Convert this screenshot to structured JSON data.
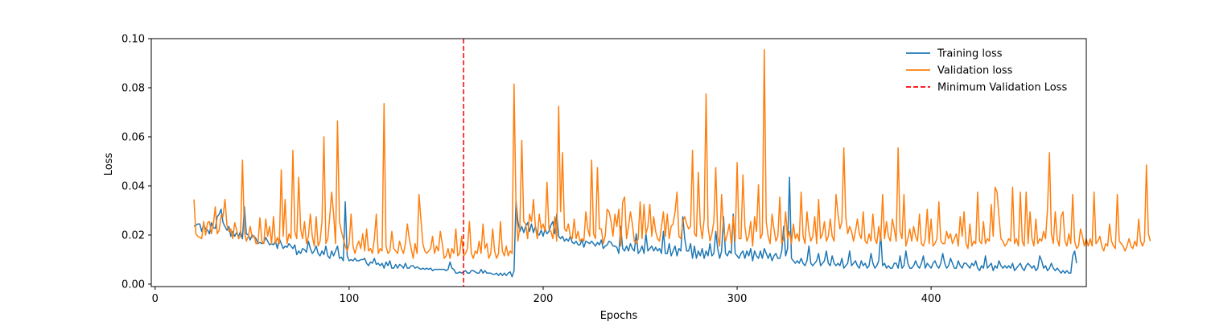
{
  "chart_data": {
    "type": "line",
    "xlabel": "Epochs",
    "ylabel": "Loss",
    "xlim": [
      -2,
      480
    ],
    "ylim": [
      -0.001,
      0.1
    ],
    "xticks": [
      0,
      100,
      200,
      300,
      400
    ],
    "yticks": [
      0.0,
      0.02,
      0.04,
      0.06,
      0.08,
      0.1
    ],
    "xtick_labels": [
      "0",
      "100",
      "200",
      "300",
      "400"
    ],
    "ytick_labels": [
      "0.00",
      "0.02",
      "0.04",
      "0.06",
      "0.08",
      "0.10"
    ],
    "grid": false,
    "legend_position": "top-right",
    "x_start": 20,
    "series": [
      {
        "name": "Training loss",
        "color": "#1f77b4",
        "style": "solid",
        "values": [
          0.0235,
          0.024,
          0.0245,
          0.0245,
          0.0215,
          0.0243,
          0.0225,
          0.022,
          0.0205,
          0.025,
          0.023,
          0.0227,
          0.0275,
          0.0285,
          0.0305,
          0.025,
          0.0235,
          0.022,
          0.0235,
          0.0195,
          0.0215,
          0.0195,
          0.021,
          0.0195,
          0.0215,
          0.0185,
          0.0315,
          0.0205,
          0.02,
          0.018,
          0.02,
          0.0195,
          0.0185,
          0.0165,
          0.017,
          0.0165,
          0.017,
          0.019,
          0.0175,
          0.016,
          0.0165,
          0.016,
          0.0175,
          0.0145,
          0.0185,
          0.0165,
          0.0145,
          0.0155,
          0.015,
          0.0165,
          0.0155,
          0.0145,
          0.016,
          0.012,
          0.0135,
          0.0125,
          0.0145,
          0.014,
          0.013,
          0.0175,
          0.0145,
          0.0125,
          0.0135,
          0.0155,
          0.0125,
          0.0115,
          0.0135,
          0.012,
          0.0155,
          0.0115,
          0.0105,
          0.0135,
          0.0115,
          0.0135,
          0.0155,
          0.0105,
          0.011,
          0.0095,
          0.0335,
          0.0115,
          0.0095,
          0.01,
          0.0095,
          0.0105,
          0.0095,
          0.0095,
          0.01,
          0.01,
          0.0105,
          0.0085,
          0.0075,
          0.009,
          0.0085,
          0.0105,
          0.008,
          0.0085,
          0.0075,
          0.0085,
          0.0065,
          0.009,
          0.0075,
          0.0095,
          0.0065,
          0.0065,
          0.008,
          0.0065,
          0.008,
          0.0075,
          0.0065,
          0.0085,
          0.0065,
          0.0065,
          0.0075,
          0.0075,
          0.0065,
          0.007,
          0.0065,
          0.006,
          0.0065,
          0.006,
          0.0065,
          0.006,
          0.0065,
          0.0055,
          0.006,
          0.006,
          0.006,
          0.006,
          0.006,
          0.006,
          0.0055,
          0.006,
          0.009,
          0.0065,
          0.006,
          0.0045,
          0.0045,
          0.005,
          0.0045,
          0.005,
          0.0055,
          0.0045,
          0.0045,
          0.0055,
          0.0055,
          0.005,
          0.0045,
          0.0045,
          0.006,
          0.0045,
          0.0055,
          0.0045,
          0.0045,
          0.0045,
          0.004,
          0.004,
          0.0045,
          0.0035,
          0.0045,
          0.0035,
          0.0045,
          0.0035,
          0.0045,
          0.005,
          0.003,
          0.0055,
          0.034,
          0.0255,
          0.0215,
          0.0235,
          0.021,
          0.0235,
          0.025,
          0.0215,
          0.0245,
          0.021,
          0.0235,
          0.0205,
          0.02,
          0.022,
          0.0195,
          0.0225,
          0.0205,
          0.0215,
          0.024,
          0.0255,
          0.0205,
          0.0285,
          0.0195,
          0.0185,
          0.0195,
          0.0175,
          0.0185,
          0.0175,
          0.0195,
          0.017,
          0.0165,
          0.0175,
          0.016,
          0.016,
          0.018,
          0.015,
          0.0175,
          0.017,
          0.0165,
          0.0175,
          0.0165,
          0.0155,
          0.017,
          0.016,
          0.018,
          0.0145,
          0.0155,
          0.016,
          0.0175,
          0.017,
          0.0155,
          0.0155,
          0.015,
          0.0125,
          0.0235,
          0.0145,
          0.0135,
          0.0155,
          0.0135,
          0.0165,
          0.0145,
          0.0135,
          0.0205,
          0.0125,
          0.0135,
          0.0155,
          0.0125,
          0.0205,
          0.0135,
          0.0145,
          0.0155,
          0.0135,
          0.015,
          0.0135,
          0.0145,
          0.0125,
          0.0215,
          0.0125,
          0.0125,
          0.0165,
          0.0115,
          0.0135,
          0.0155,
          0.0115,
          0.0145,
          0.0135,
          0.0275,
          0.0185,
          0.0135,
          0.0135,
          0.0165,
          0.0105,
          0.0155,
          0.0105,
          0.0135,
          0.0115,
          0.0145,
          0.0105,
          0.0135,
          0.0115,
          0.0165,
          0.0115,
          0.0125,
          0.0215,
          0.0145,
          0.0105,
          0.0135,
          0.0275,
          0.0125,
          0.0115,
          0.0135,
          0.0125,
          0.0285,
          0.0125,
          0.0115,
          0.0105,
          0.0125,
          0.0135,
          0.0105,
          0.0135,
          0.0115,
          0.0145,
          0.0095,
          0.0135,
          0.0115,
          0.0105,
          0.0135,
          0.0105,
          0.0145,
          0.0125,
          0.0105,
          0.0125,
          0.0095,
          0.0115,
          0.0125,
          0.0105,
          0.0105,
          0.0135,
          0.0235,
          0.0115,
          0.0145,
          0.0435,
          0.0105,
          0.0095,
          0.0085,
          0.0095,
          0.0085,
          0.0105,
          0.0085,
          0.0075,
          0.0095,
          0.0155,
          0.0085,
          0.0075,
          0.0085,
          0.0095,
          0.0125,
          0.0075,
          0.0085,
          0.0095,
          0.0135,
          0.0085,
          0.0075,
          0.0115,
          0.0085,
          0.0075,
          0.0085,
          0.0075,
          0.0105,
          0.0065,
          0.0075,
          0.0085,
          0.0135,
          0.0075,
          0.0085,
          0.0095,
          0.0075,
          0.0065,
          0.0095,
          0.0075,
          0.0085,
          0.0065,
          0.0075,
          0.0125,
          0.0085,
          0.0065,
          0.0075,
          0.0095,
          0.0205,
          0.0075,
          0.0085,
          0.0065,
          0.0075,
          0.0065,
          0.0065,
          0.0085,
          0.0085,
          0.0065,
          0.0115,
          0.0065,
          0.0075,
          0.0135,
          0.0085,
          0.0065,
          0.0065,
          0.0075,
          0.0095,
          0.0075,
          0.0065,
          0.0085,
          0.0115,
          0.0065,
          0.0085,
          0.0075,
          0.0065,
          0.0085,
          0.0095,
          0.0075,
          0.0065,
          0.0085,
          0.0125,
          0.0085,
          0.0065,
          0.0075,
          0.0105,
          0.0085,
          0.0065,
          0.0065,
          0.0095,
          0.0075,
          0.0065,
          0.0085,
          0.0085,
          0.0075,
          0.0065,
          0.0085,
          0.0075,
          0.0095,
          0.0065,
          0.0055,
          0.0075,
          0.0065,
          0.0115,
          0.0065,
          0.0075,
          0.0085,
          0.0055,
          0.0075,
          0.0065,
          0.0095,
          0.0075,
          0.0065,
          0.0075,
          0.0065,
          0.0075,
          0.0065,
          0.0085,
          0.0055,
          0.0065,
          0.0075,
          0.0085,
          0.0065,
          0.0055,
          0.0075,
          0.0085,
          0.0075,
          0.0065,
          0.0075,
          0.0055,
          0.0065,
          0.0115,
          0.0095,
          0.0065,
          0.0075,
          0.0055,
          0.0065,
          0.0085,
          0.0065,
          0.0055,
          0.0065,
          0.0055,
          0.0045,
          0.0055,
          0.0045,
          0.0055,
          0.0045,
          0.0045,
          0.0115,
          0.0135,
          0.0085
        ]
      },
      {
        "name": "Validation loss",
        "color": "#ff7f0e",
        "style": "solid",
        "values": [
          0.0345,
          0.0205,
          0.0195,
          0.019,
          0.0185,
          0.0255,
          0.02,
          0.025,
          0.0255,
          0.0205,
          0.0245,
          0.0315,
          0.0205,
          0.022,
          0.028,
          0.0275,
          0.0345,
          0.024,
          0.0215,
          0.0225,
          0.0185,
          0.025,
          0.022,
          0.0185,
          0.0195,
          0.0505,
          0.0215,
          0.0175,
          0.0195,
          0.0235,
          0.019,
          0.0195,
          0.0165,
          0.0165,
          0.027,
          0.0175,
          0.0165,
          0.0265,
          0.0195,
          0.0235,
          0.0165,
          0.0275,
          0.0165,
          0.019,
          0.0165,
          0.0465,
          0.0195,
          0.0345,
          0.0165,
          0.0205,
          0.0185,
          0.0545,
          0.0215,
          0.0185,
          0.0435,
          0.0225,
          0.0185,
          0.0255,
          0.0165,
          0.0195,
          0.0285,
          0.0195,
          0.0155,
          0.0275,
          0.0155,
          0.0175,
          0.0255,
          0.06,
          0.0165,
          0.0185,
          0.0275,
          0.0375,
          0.0285,
          0.0165,
          0.0665,
          0.0255,
          0.0215,
          0.0185,
          0.0155,
          0.0135,
          0.0165,
          0.0285,
          0.0155,
          0.0125,
          0.0155,
          0.0175,
          0.0145,
          0.0205,
          0.0135,
          0.0225,
          0.0135,
          0.0145,
          0.0125,
          0.0185,
          0.0285,
          0.0125,
          0.0145,
          0.0135,
          0.0735,
          0.0155,
          0.0125,
          0.0135,
          0.0215,
          0.0145,
          0.0135,
          0.0125,
          0.0175,
          0.0145,
          0.0125,
          0.0165,
          0.0245,
          0.0185,
          0.0145,
          0.0105,
          0.0165,
          0.0125,
          0.0365,
          0.0265,
          0.0165,
          0.0135,
          0.0125,
          0.0135,
          0.0145,
          0.0195,
          0.0125,
          0.0155,
          0.0135,
          0.0215,
          0.0165,
          0.0105,
          0.0115,
          0.0145,
          0.0105,
          0.0145,
          0.0125,
          0.0225,
          0.0115,
          0.0125,
          0.0195,
          0.0115,
          0.0125,
          0.0145,
          0.0255,
          0.0125,
          0.0105,
          0.0135,
          0.0125,
          0.0175,
          0.0125,
          0.0245,
          0.0145,
          0.0165,
          0.0105,
          0.0125,
          0.0225,
          0.0135,
          0.0105,
          0.0125,
          0.0255,
          0.0135,
          0.0115,
          0.0155,
          0.0115,
          0.0135,
          0.0125,
          0.0815,
          0.0325,
          0.0175,
          0.0235,
          0.0585,
          0.0255,
          0.0245,
          0.0185,
          0.0285,
          0.0255,
          0.0345,
          0.0235,
          0.0185,
          0.0285,
          0.0225,
          0.0245,
          0.0215,
          0.0415,
          0.0225,
          0.0215,
          0.0185,
          0.0275,
          0.0175,
          0.0725,
          0.0295,
          0.0535,
          0.0225,
          0.0215,
          0.0245,
          0.0195,
          0.0185,
          0.0265,
          0.0185,
          0.0215,
          0.0175,
          0.0185,
          0.0175,
          0.0295,
          0.0225,
          0.0195,
          0.0505,
          0.0205,
          0.0185,
          0.0475,
          0.0225,
          0.0225,
          0.0165,
          0.0195,
          0.0305,
          0.0295,
          0.0255,
          0.0195,
          0.0285,
          0.0235,
          0.0305,
          0.0155,
          0.0335,
          0.0355,
          0.0185,
          0.0235,
          0.0295,
          0.0245,
          0.0175,
          0.0165,
          0.0185,
          0.0335,
          0.0185,
          0.0325,
          0.0205,
          0.0235,
          0.0325,
          0.0195,
          0.0275,
          0.0215,
          0.0185,
          0.0175,
          0.0235,
          0.0295,
          0.0195,
          0.0285,
          0.0185,
          0.0235,
          0.0245,
          0.0295,
          0.0375,
          0.0195,
          0.0185,
          0.0255,
          0.0275,
          0.0245,
          0.0225,
          0.0235,
          0.0545,
          0.0205,
          0.0195,
          0.0455,
          0.0245,
          0.0185,
          0.0265,
          0.0775,
          0.0235,
          0.0175,
          0.0205,
          0.0255,
          0.0475,
          0.0195,
          0.0155,
          0.0365,
          0.0225,
          0.0175,
          0.0205,
          0.0245,
          0.0165,
          0.0275,
          0.0175,
          0.0495,
          0.0185,
          0.0185,
          0.0445,
          0.0235,
          0.0175,
          0.0195,
          0.0255,
          0.0155,
          0.0275,
          0.0215,
          0.0405,
          0.0185,
          0.0205,
          0.0955,
          0.0255,
          0.0195,
          0.0165,
          0.0285,
          0.0225,
          0.0175,
          0.0195,
          0.0355,
          0.0165,
          0.0185,
          0.0295,
          0.0185,
          0.0215,
          0.0165,
          0.0245,
          0.0185,
          0.0205,
          0.0175,
          0.0375,
          0.0195,
          0.0165,
          0.0295,
          0.0215,
          0.0175,
          0.0195,
          0.0275,
          0.0165,
          0.0345,
          0.0185,
          0.0205,
          0.0255,
          0.0175,
          0.0195,
          0.0265,
          0.0195,
          0.0175,
          0.0365,
          0.0285,
          0.0225,
          0.0255,
          0.0555,
          0.0275,
          0.0205,
          0.0235,
          0.0215,
          0.0175,
          0.0215,
          0.0265,
          0.0205,
          0.0185,
          0.0295,
          0.0175,
          0.0165,
          0.0205,
          0.0175,
          0.0285,
          0.0185,
          0.0165,
          0.0235,
          0.0175,
          0.0365,
          0.0185,
          0.0255,
          0.0195,
          0.0175,
          0.0265,
          0.0225,
          0.0175,
          0.0555,
          0.0215,
          0.0185,
          0.0365,
          0.0155,
          0.0185,
          0.0225,
          0.0175,
          0.0235,
          0.0195,
          0.0175,
          0.0285,
          0.0165,
          0.0155,
          0.0185,
          0.0305,
          0.0165,
          0.0265,
          0.0155,
          0.0165,
          0.0185,
          0.0335,
          0.0175,
          0.0165,
          0.0165,
          0.0215,
          0.0185,
          0.0205,
          0.0165,
          0.0185,
          0.0205,
          0.0155,
          0.0275,
          0.0195,
          0.0295,
          0.0165,
          0.0145,
          0.0245,
          0.0155,
          0.0175,
          0.0165,
          0.0375,
          0.0175,
          0.0165,
          0.0255,
          0.0165,
          0.0185,
          0.0175,
          0.0325,
          0.0195,
          0.0395,
          0.0375,
          0.0275,
          0.0185,
          0.0175,
          0.0155,
          0.0165,
          0.0185,
          0.0175,
          0.0395,
          0.0165,
          0.0185,
          0.0155,
          0.0375,
          0.0175,
          0.0155,
          0.0375,
          0.0165,
          0.0295,
          0.0185,
          0.0155,
          0.0265,
          0.0165,
          0.0185,
          0.0175,
          0.0215,
          0.0185,
          0.0305,
          0.0535,
          0.0205,
          0.0165,
          0.0295,
          0.0185,
          0.0155,
          0.0275,
          0.0295,
          0.0175,
          0.0155,
          0.0205,
          0.0165,
          0.0365,
          0.0175,
          0.0145,
          0.0155,
          0.0225,
          0.0195,
          0.0155,
          0.0185,
          0.0155,
          0.0185,
          0.0155,
          0.0375,
          0.0165,
          0.0175,
          0.0195,
          0.0155,
          0.0135,
          0.0165,
          0.0155,
          0.0245,
          0.0175,
          0.0155,
          0.0145,
          0.0365,
          0.0175,
          0.0165,
          0.0155,
          0.0135,
          0.0155,
          0.0185,
          0.0155,
          0.0145,
          0.0175,
          0.0155,
          0.0265,
          0.0175,
          0.0155,
          0.0175,
          0.0485,
          0.0205,
          0.0175
        ]
      }
    ],
    "vline": {
      "name": "Minimum Validation Loss",
      "x": 159,
      "color": "#ff0000",
      "style": "dashed"
    }
  }
}
